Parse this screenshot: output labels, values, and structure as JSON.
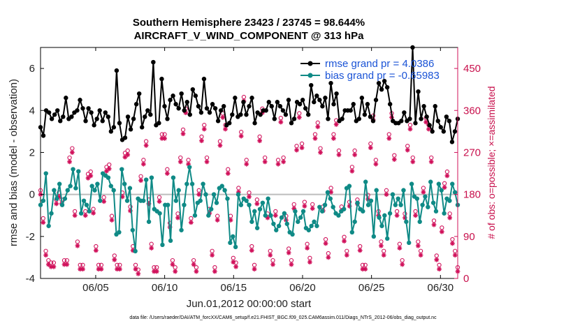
{
  "chart_data": {
    "type": "line",
    "title": "Southern Hemisphere 23423 / 23745 = 98.644%",
    "subtitle": "AIRCRAFT_V_WIND_COMPONENT @ 313 hPa",
    "xlabel": "Jun.01,2012 00:00:00 start",
    "ylabel_left": "rmse and bias (model - observation)",
    "ylabel_right": "# of obs: o=possible; ×=assimilated",
    "footer": "data file: /Users/raeder/DAI/ATM_forcXX/CAM6_setup/f.e21.FHIST_BGC.f09_025.CAM6assim.011/Diags_NTrS_2012-06/obs_diag_output.nc",
    "xlim": [
      1.0,
      31.25
    ],
    "ylim": [
      -4,
      7
    ],
    "ylim_right": [
      0,
      495
    ],
    "x_ticks": [
      5,
      10,
      15,
      20,
      25,
      30
    ],
    "x_tick_labels": [
      "06/05",
      "06/10",
      "06/15",
      "06/20",
      "06/25",
      "06/30"
    ],
    "y_ticks": [
      -4,
      -2,
      0,
      2,
      4,
      6
    ],
    "y_tick_labels": [
      "-4",
      "-2",
      "0",
      "2",
      "4",
      "6"
    ],
    "y2_ticks": [
      0,
      90,
      180,
      270,
      360,
      450
    ],
    "y2_tick_labels": [
      "0",
      "90",
      "180",
      "270",
      "360",
      "450"
    ],
    "colors": {
      "rmse": "#000000",
      "bias": "#0f8a86",
      "obs": "#d0105a",
      "zero_line": "#bdbdbd",
      "legend_text": "#1a53d6"
    },
    "series": [
      {
        "name": "rmse grand pr = 4.0386",
        "axis": "left",
        "style": "line-dot",
        "values": [
          3.2,
          2.8,
          4.0,
          3.9,
          3.6,
          3.8,
          4.0,
          3.5,
          3.7,
          4.6,
          3.6,
          3.7,
          3.9,
          4.0,
          4.5,
          4.1,
          3.5,
          4.1,
          3.9,
          3.3,
          3.6,
          4.0,
          3.5,
          3.9,
          3.7,
          3.0,
          3.2,
          5.9,
          3.4,
          2.6,
          2.7,
          3.7,
          3.1,
          3.6,
          4.3,
          4.8,
          3.2,
          3.7,
          4.0,
          3.8,
          6.3,
          3.3,
          3.4,
          5.5,
          4.2,
          3.6,
          4.5,
          4.7,
          4.3,
          4.1,
          4.8,
          4.0,
          4.4,
          3.8,
          5.0,
          4.7,
          4.2,
          3.9,
          5.5,
          4.1,
          3.9,
          4.3,
          4.1,
          3.5,
          4.0,
          4.2,
          3.3,
          3.4,
          3.8,
          4.6,
          3.7,
          3.8,
          4.4,
          3.8,
          4.2,
          4.6,
          3.4,
          3.9,
          3.8,
          4.0,
          4.0,
          4.4,
          4.2,
          3.6,
          4.4,
          4.2,
          4.0,
          3.8,
          4.5,
          3.4,
          3.6,
          4.4,
          4.3,
          4.5,
          4.1,
          3.8,
          5.2,
          4.4,
          4.7,
          4.5,
          4.2,
          4.6,
          3.6,
          5.3,
          4.3,
          4.8,
          3.5,
          3.6,
          4.0,
          4.0,
          4.0,
          4.3,
          3.5,
          3.6,
          4.6,
          3.8,
          4.3,
          3.7,
          3.5,
          4.5,
          5.3,
          5.0,
          5.4,
          5.1,
          4.3,
          3.5,
          3.4,
          3.4,
          3.5,
          3.9,
          3.5,
          3.6,
          7.0,
          3.4,
          4.9,
          3.6,
          4.2,
          3.7,
          3.3,
          3.0,
          4.2,
          3.5,
          3.2,
          3.0,
          3.7,
          3.5,
          2.5,
          3.0,
          3.6
        ]
      },
      {
        "name": "bias grand pr = -0.65983",
        "axis": "left",
        "style": "line-dot",
        "values": [
          -0.5,
          -0.3,
          1.0,
          -1.5,
          -0.9,
          0.2,
          -0.2,
          0.5,
          -0.5,
          -0.2,
          0.2,
          0.4,
          1.2,
          0.3,
          1.1,
          -0.9,
          -0.3,
          -0.5,
          -0.8,
          0.4,
          0.2,
          0.5,
          -0.3,
          1.0,
          0.9,
          0.8,
          0.4,
          0.2,
          -1.9,
          -1.8,
          1.2,
          0.5,
          -0.3,
          0.3,
          -1.7,
          -2.7,
          -0.2,
          -0.3,
          -0.3,
          0.7,
          -1.3,
          0.8,
          -0.7,
          -0.8,
          -0.9,
          -2.4,
          -0.5,
          -0.5,
          -2.2,
          0.8,
          -0.3,
          0.2,
          -1.7,
          -0.5,
          0.5,
          1.3,
          0.5,
          -1.0,
          -0.4,
          -0.3,
          0.5,
          0.0,
          -1.0,
          -0.7,
          0.0,
          -0.4,
          0.3,
          0.4,
          0.2,
          -0.2,
          -2.3,
          -2.0,
          -2.5,
          0.0,
          -0.5,
          -0.2,
          -0.3,
          -0.5,
          -1.3,
          -0.8,
          -1.6,
          -0.7,
          -0.4,
          -1.0,
          -0.2,
          -1.0,
          -1.4,
          -1.7,
          -1.5,
          -1.1,
          -0.9,
          -1.4,
          -1.8,
          -1.9,
          -0.8,
          -1.3,
          -1.1,
          -0.8,
          -1.6,
          -1.7,
          -1.5,
          -1.3,
          -1.5,
          -0.6,
          -0.8,
          -0.5,
          0.1,
          -0.2,
          -0.6,
          -0.9,
          -1.0,
          -0.8,
          -0.7,
          0.3,
          0.4,
          -1.8,
          -1.3,
          -0.4,
          -0.7,
          -0.8,
          0.6,
          -0.5,
          -0.3,
          -2.0,
          0.2,
          -1.1,
          -1.5,
          -1.0,
          -2.1,
          -0.9,
          0.0,
          -0.5,
          -0.2,
          -0.5,
          0.2,
          -1.3,
          -2.3,
          0.5,
          -0.1,
          -0.2,
          -1.3,
          -0.5,
          -0.1,
          -0.6,
          0.6,
          -0.4,
          -0.8,
          0.5,
          0.2,
          -0.9,
          -0.2,
          -0.3,
          0.5,
          0.1,
          -0.5
        ]
      },
      {
        "name": "obs possible",
        "axis": "right",
        "style": "circle-marker",
        "values": [
          185,
          125,
          55,
          35,
          30,
          30,
          165,
          180,
          165,
          35,
          35,
          255,
          275,
          140,
          75,
          25,
          25,
          140,
          220,
          225,
          145,
          65,
          25,
          25,
          170,
          235,
          240,
          130,
          45,
          25,
          25,
          180,
          265,
          270,
          150,
          65,
          25,
          15,
          215,
          250,
          290,
          165,
          70,
          20,
          20,
          170,
          305,
          305,
          230,
          115,
          35,
          20,
          135,
          255,
          315,
          360,
          250,
          125,
          35,
          20,
          185,
          300,
          325,
          255,
          145,
          55,
          20,
          130,
          290,
          350,
          325,
          230,
          130,
          40,
          30,
          190,
          310,
          385,
          250,
          180,
          65,
          25,
          165,
          300,
          360,
          255,
          135,
          55,
          35,
          140,
          250,
          340,
          255,
          130,
          60,
          35,
          155,
          280,
          350,
          285,
          160,
          70,
          40,
          155,
          305,
          330,
          275,
          150,
          80,
          50,
          190,
          305,
          335,
          270,
          150,
          85,
          55,
          160,
          235,
          270,
          165,
          65,
          25,
          25,
          175,
          285,
          345,
          250,
          140,
          75,
          55,
          185,
          305,
          350,
          260,
          140,
          70,
          35,
          135,
          280,
          325,
          255,
          140,
          75,
          55,
          190,
          340,
          325,
          255,
          120,
          45,
          25,
          105,
          200,
          225,
          135,
          80,
          55,
          20
        ]
      },
      {
        "name": "obs assimilated",
        "axis": "right",
        "style": "asterisk-marker",
        "values": [
          180,
          120,
          50,
          30,
          25,
          25,
          160,
          175,
          160,
          30,
          30,
          250,
          270,
          135,
          70,
          20,
          20,
          135,
          215,
          220,
          140,
          60,
          20,
          20,
          165,
          230,
          235,
          125,
          40,
          20,
          20,
          175,
          260,
          265,
          145,
          60,
          20,
          10,
          210,
          245,
          285,
          160,
          65,
          15,
          15,
          165,
          300,
          300,
          225,
          110,
          30,
          15,
          130,
          250,
          310,
          355,
          245,
          120,
          30,
          15,
          180,
          295,
          320,
          250,
          140,
          50,
          15,
          125,
          285,
          345,
          320,
          225,
          125,
          35,
          25,
          185,
          305,
          380,
          245,
          175,
          60,
          20,
          160,
          295,
          355,
          250,
          130,
          50,
          30,
          135,
          245,
          335,
          250,
          125,
          55,
          30,
          150,
          275,
          345,
          280,
          155,
          65,
          35,
          150,
          300,
          325,
          270,
          145,
          75,
          45,
          185,
          300,
          330,
          265,
          145,
          80,
          50,
          155,
          230,
          265,
          160,
          60,
          20,
          20,
          170,
          280,
          340,
          245,
          135,
          70,
          50,
          180,
          300,
          345,
          255,
          135,
          65,
          30,
          130,
          275,
          320,
          250,
          135,
          70,
          50,
          185,
          335,
          320,
          250,
          115,
          40,
          20,
          100,
          195,
          220,
          130,
          75,
          50,
          15
        ]
      }
    ]
  },
  "legend": {
    "rmse_label": "rmse grand pr = 4.0386",
    "bias_label": "bias grand pr = -0.65983"
  }
}
